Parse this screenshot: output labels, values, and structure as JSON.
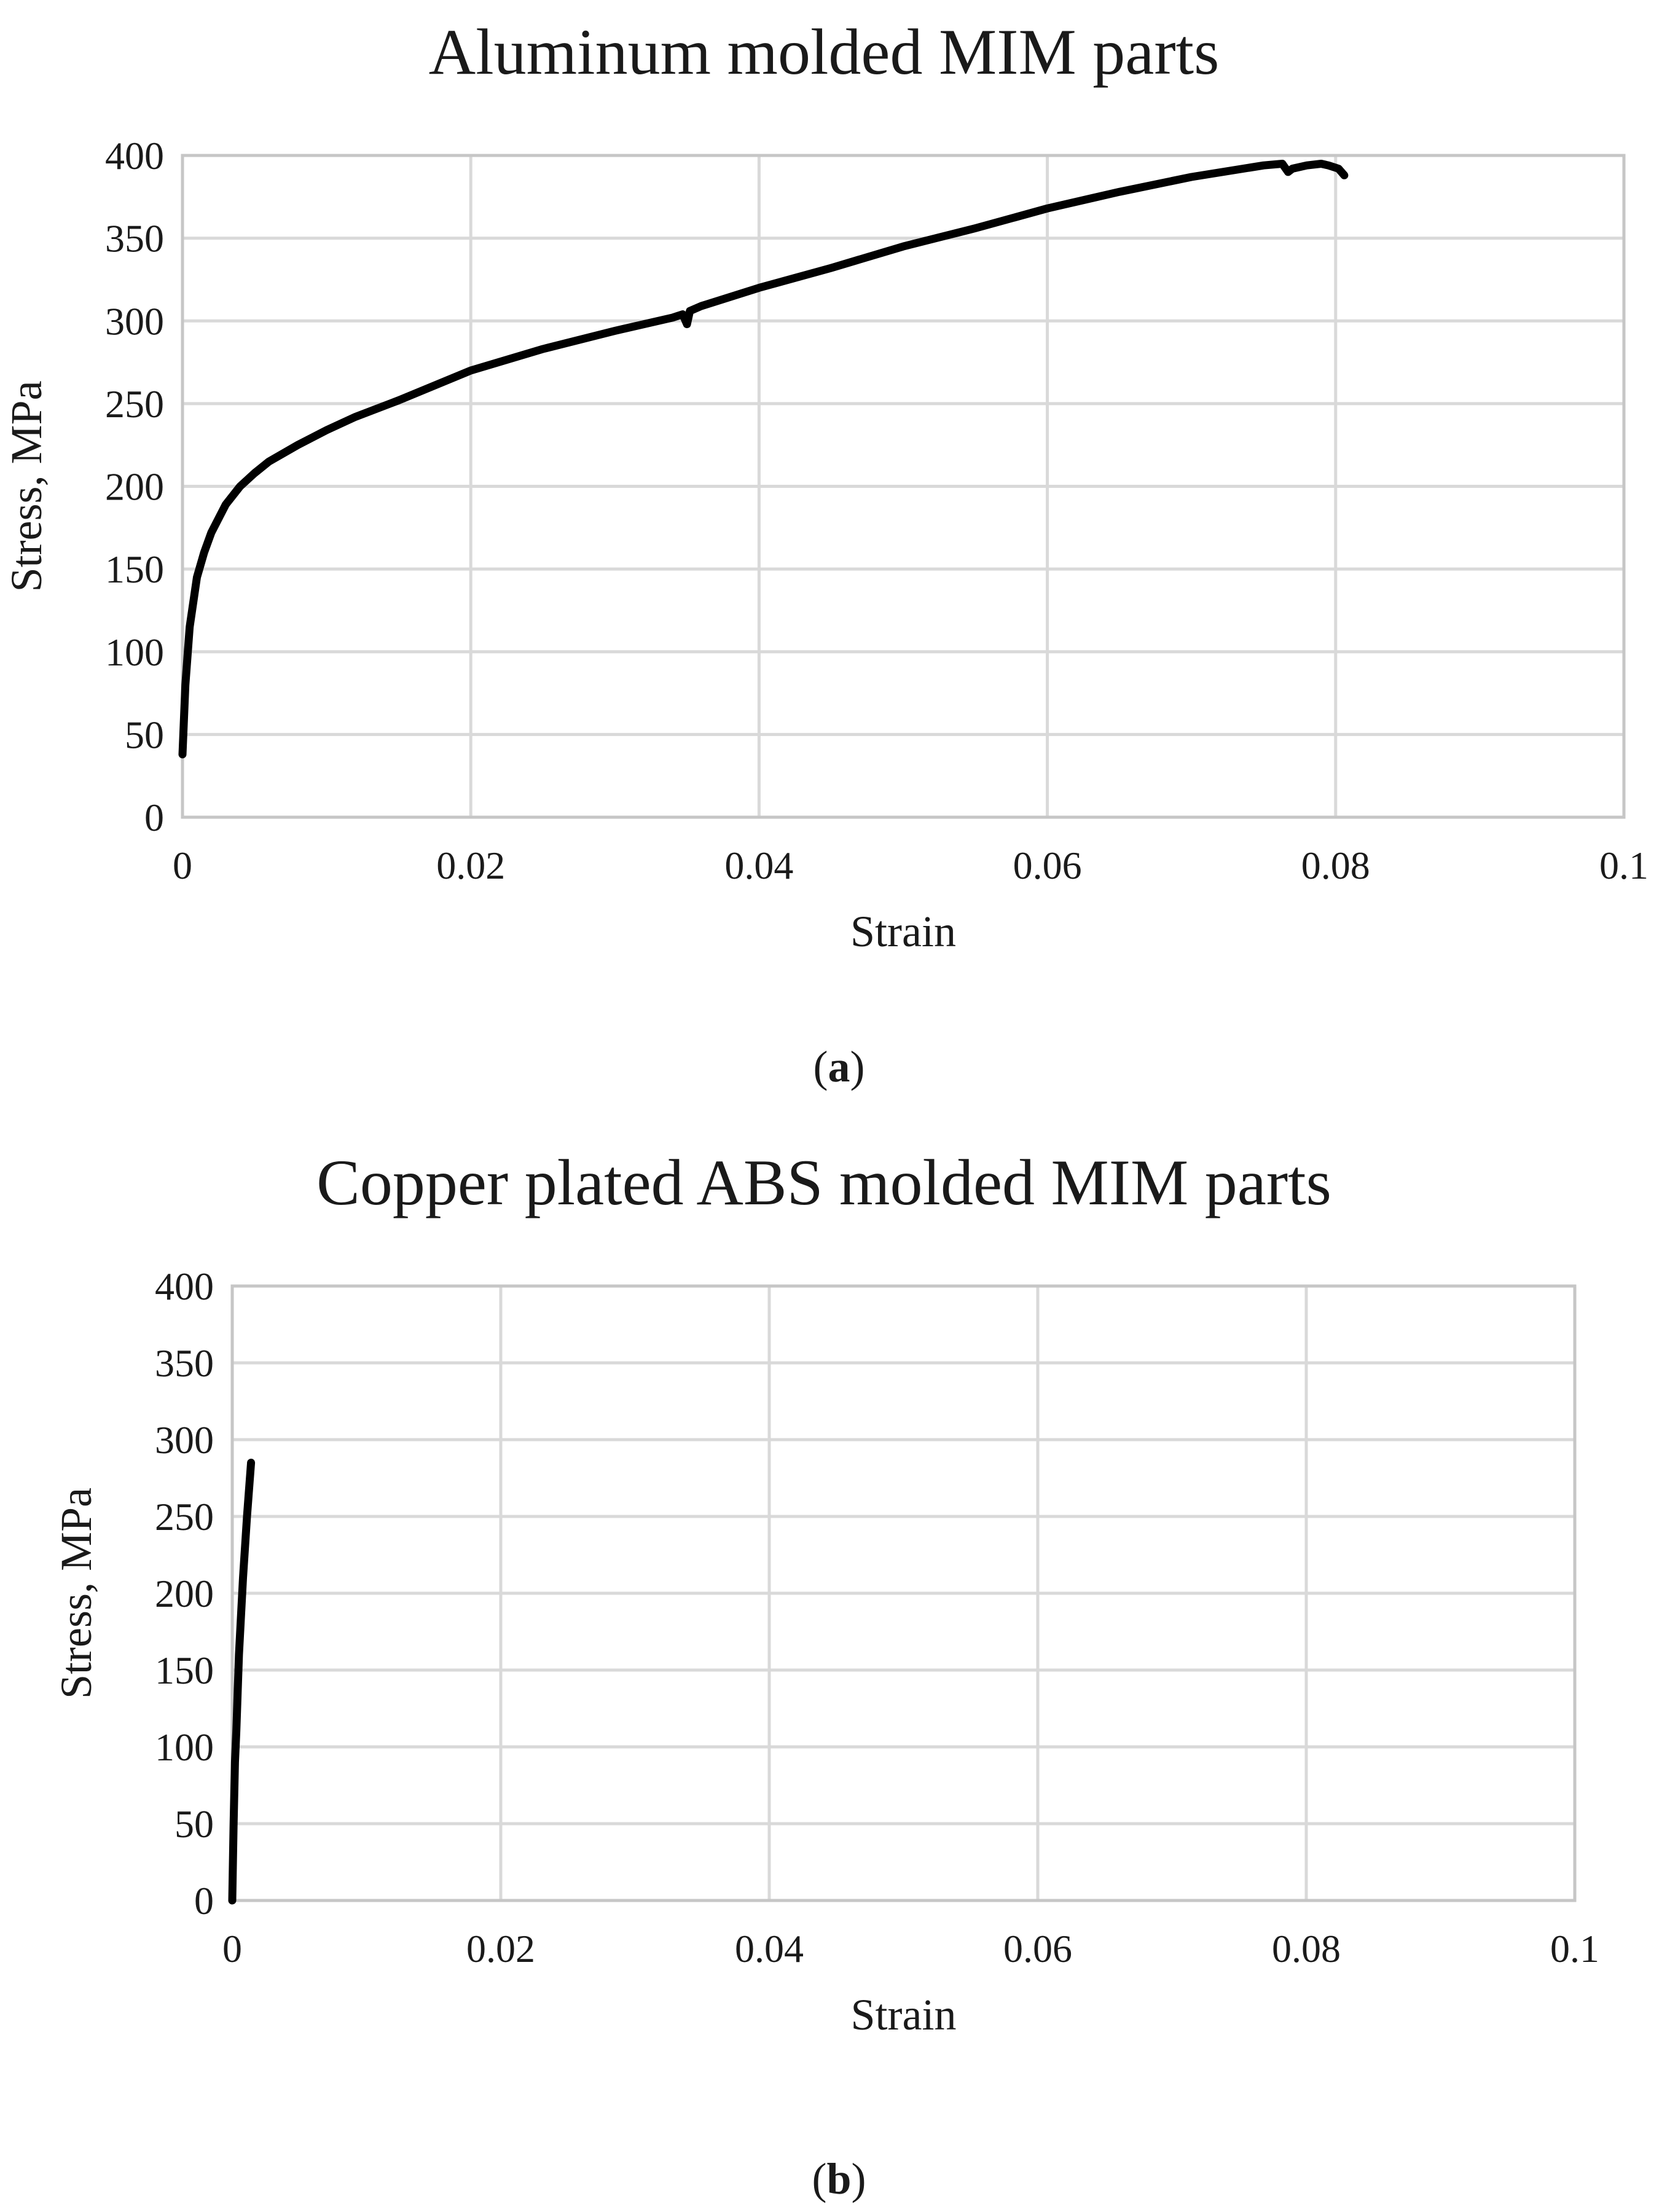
{
  "chart_data": [
    {
      "type": "line",
      "title": "Aluminum molded MIM parts",
      "xlabel": "Strain",
      "ylabel": "Stress, MPa",
      "xlim": [
        0,
        0.1
      ],
      "ylim": [
        0,
        400
      ],
      "xticks": [
        "0",
        "0.02",
        "0.04",
        "0.06",
        "0.08",
        "0.1"
      ],
      "yticks": [
        "0",
        "50",
        "100",
        "150",
        "200",
        "250",
        "300",
        "350",
        "400"
      ],
      "grid": true,
      "caption_letter": "a",
      "series": [
        {
          "name": "Aluminum molded MIM parts",
          "x": [
            0,
            0.0002,
            0.0005,
            0.001,
            0.0015,
            0.002,
            0.003,
            0.004,
            0.005,
            0.006,
            0.008,
            0.01,
            0.012,
            0.015,
            0.02,
            0.025,
            0.03,
            0.034,
            0.0347,
            0.035,
            0.0352,
            0.036,
            0.04,
            0.045,
            0.05,
            0.055,
            0.06,
            0.065,
            0.07,
            0.075,
            0.0763,
            0.0767,
            0.077,
            0.078,
            0.079,
            0.0795,
            0.0802,
            0.0806
          ],
          "y": [
            38,
            80,
            115,
            145,
            160,
            172,
            189,
            200,
            208,
            215,
            225,
            234,
            242,
            252,
            270,
            283,
            294,
            302,
            304,
            298,
            306,
            309,
            320,
            332,
            345,
            356,
            368,
            378,
            387,
            394,
            395,
            390,
            392,
            394,
            395,
            394,
            392,
            388
          ]
        }
      ]
    },
    {
      "type": "line",
      "title": "Copper plated ABS molded MIM parts",
      "xlabel": "Strain",
      "ylabel": "Stress, MPa",
      "xlim": [
        0,
        0.1
      ],
      "ylim": [
        0,
        400
      ],
      "xticks": [
        "0",
        "0.02",
        "0.04",
        "0.06",
        "0.08",
        "0.1"
      ],
      "yticks": [
        "0",
        "50",
        "100",
        "150",
        "200",
        "250",
        "300",
        "350",
        "400"
      ],
      "grid": true,
      "caption_letter": "b",
      "series": [
        {
          "name": "Copper plated ABS molded MIM parts",
          "x": [
            0,
            0.0001,
            0.0002,
            0.0003,
            0.0005,
            0.0008,
            0.0011,
            0.0014
          ],
          "y": [
            0,
            50,
            90,
            110,
            160,
            210,
            250,
            285
          ]
        }
      ]
    }
  ]
}
